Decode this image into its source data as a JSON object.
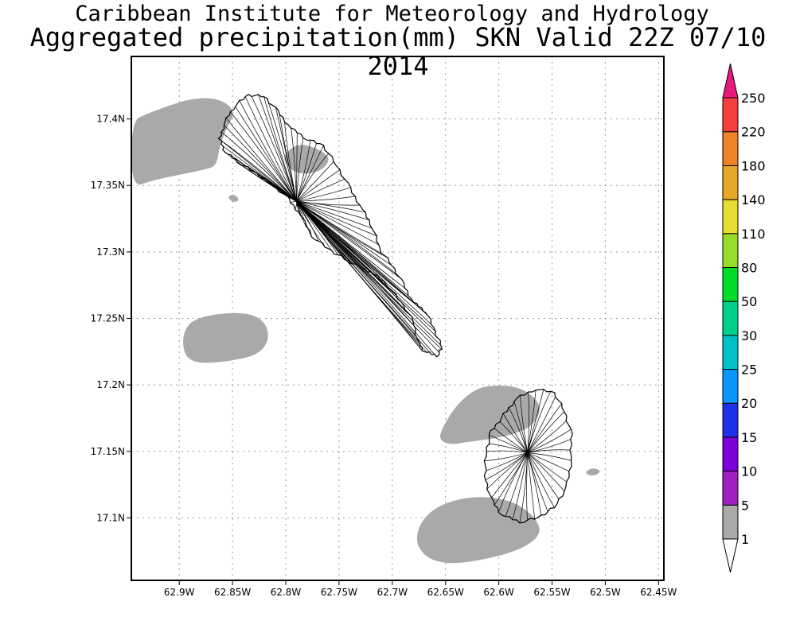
{
  "header": {
    "title": "Caribbean Institute for Meteorology and Hydrology",
    "subtitle": "Aggregated precipitation(mm) SKN Valid 22Z 07/10 2014"
  },
  "map": {
    "lon_range": [
      -62.945,
      -62.445
    ],
    "lat_range": [
      17.053,
      17.447
    ],
    "grid": true,
    "x_ticks": [
      {
        "value": -62.9,
        "label": "62.9W"
      },
      {
        "value": -62.85,
        "label": "62.85W"
      },
      {
        "value": -62.8,
        "label": "62.8W"
      },
      {
        "value": -62.75,
        "label": "62.75W"
      },
      {
        "value": -62.7,
        "label": "62.7W"
      },
      {
        "value": -62.65,
        "label": "62.65W"
      },
      {
        "value": -62.6,
        "label": "62.6W"
      },
      {
        "value": -62.55,
        "label": "62.55W"
      },
      {
        "value": -62.5,
        "label": "62.5W"
      },
      {
        "value": -62.45,
        "label": "62.45W"
      }
    ],
    "y_ticks": [
      {
        "value": 17.4,
        "label": "17.4N"
      },
      {
        "value": 17.35,
        "label": "17.35N"
      },
      {
        "value": 17.3,
        "label": "17.3N"
      },
      {
        "value": 17.25,
        "label": "17.25N"
      },
      {
        "value": 17.2,
        "label": "17.2N"
      },
      {
        "value": 17.15,
        "label": "17.15N"
      },
      {
        "value": 17.1,
        "label": "17.1N"
      }
    ],
    "precip_color": "#a9a9a9",
    "precip_areas": [
      {
        "name": "precip-area-northwest",
        "points": [
          [
            -62.945,
            17.398
          ],
          [
            -62.93,
            17.404
          ],
          [
            -62.91,
            17.41
          ],
          [
            -62.89,
            17.415
          ],
          [
            -62.87,
            17.416
          ],
          [
            -62.855,
            17.412
          ],
          [
            -62.848,
            17.404
          ],
          [
            -62.855,
            17.394
          ],
          [
            -62.862,
            17.38
          ],
          [
            -62.865,
            17.365
          ],
          [
            -62.875,
            17.362
          ],
          [
            -62.9,
            17.358
          ],
          [
            -62.925,
            17.354
          ],
          [
            -62.945,
            17.348
          ]
        ]
      },
      {
        "name": "precip-area-islet",
        "points": [
          [
            -62.855,
            17.341
          ],
          [
            -62.849,
            17.344
          ],
          [
            -62.843,
            17.339
          ],
          [
            -62.849,
            17.337
          ]
        ]
      },
      {
        "name": "precip-area-central-st-kitts",
        "points": [
          [
            -62.805,
            17.37
          ],
          [
            -62.79,
            17.382
          ],
          [
            -62.77,
            17.378
          ],
          [
            -62.757,
            17.37
          ],
          [
            -62.768,
            17.36
          ],
          [
            -62.79,
            17.358
          ]
        ]
      },
      {
        "name": "precip-area-west-offshore",
        "points": [
          [
            -62.897,
            17.23
          ],
          [
            -62.895,
            17.242
          ],
          [
            -62.885,
            17.25
          ],
          [
            -62.86,
            17.254
          ],
          [
            -62.835,
            17.254
          ],
          [
            -62.82,
            17.248
          ],
          [
            -62.815,
            17.235
          ],
          [
            -62.825,
            17.223
          ],
          [
            -62.85,
            17.218
          ],
          [
            -62.88,
            17.216
          ],
          [
            -62.893,
            17.22
          ]
        ]
      },
      {
        "name": "precip-area-nevis-north",
        "points": [
          [
            -62.655,
            17.165
          ],
          [
            -62.64,
            17.185
          ],
          [
            -62.62,
            17.198
          ],
          [
            -62.6,
            17.2
          ],
          [
            -62.58,
            17.198
          ],
          [
            -62.565,
            17.19
          ],
          [
            -62.56,
            17.18
          ],
          [
            -62.57,
            17.168
          ],
          [
            -62.59,
            17.162
          ],
          [
            -62.61,
            17.159
          ],
          [
            -62.63,
            17.157
          ],
          [
            -62.645,
            17.155
          ],
          [
            -62.655,
            17.158
          ]
        ]
      },
      {
        "name": "precip-area-nevis-south",
        "points": [
          [
            -62.678,
            17.08
          ],
          [
            -62.675,
            17.095
          ],
          [
            -62.66,
            17.108
          ],
          [
            -62.635,
            17.115
          ],
          [
            -62.61,
            17.116
          ],
          [
            -62.585,
            17.112
          ],
          [
            -62.565,
            17.1
          ],
          [
            -62.56,
            17.088
          ],
          [
            -62.575,
            17.078
          ],
          [
            -62.6,
            17.071
          ],
          [
            -62.64,
            17.065
          ],
          [
            -62.665,
            17.068
          ]
        ]
      },
      {
        "name": "precip-area-east-islet",
        "points": [
          [
            -62.52,
            17.134
          ],
          [
            -62.512,
            17.138
          ],
          [
            -62.503,
            17.135
          ],
          [
            -62.512,
            17.131
          ]
        ]
      }
    ],
    "islands": [
      {
        "name": "st-kitts-island",
        "points": [
          [
            -62.862,
            17.385
          ],
          [
            -62.857,
            17.398
          ],
          [
            -62.848,
            17.41
          ],
          [
            -62.835,
            17.418
          ],
          [
            -62.82,
            17.417
          ],
          [
            -62.808,
            17.406
          ],
          [
            -62.795,
            17.393
          ],
          [
            -62.78,
            17.385
          ],
          [
            -62.765,
            17.38
          ],
          [
            -62.752,
            17.365
          ],
          [
            -62.74,
            17.348
          ],
          [
            -62.728,
            17.332
          ],
          [
            -62.718,
            17.318
          ],
          [
            -62.712,
            17.302
          ],
          [
            -62.7,
            17.29
          ],
          [
            -62.69,
            17.276
          ],
          [
            -62.68,
            17.262
          ],
          [
            -62.668,
            17.255
          ],
          [
            -62.66,
            17.24
          ],
          [
            -62.653,
            17.228
          ],
          [
            -62.658,
            17.222
          ],
          [
            -62.67,
            17.225
          ],
          [
            -62.676,
            17.232
          ],
          [
            -62.68,
            17.248
          ],
          [
            -62.692,
            17.262
          ],
          [
            -62.705,
            17.276
          ],
          [
            -62.72,
            17.285
          ],
          [
            -62.735,
            17.29
          ],
          [
            -62.745,
            17.295
          ],
          [
            -62.76,
            17.302
          ],
          [
            -62.775,
            17.312
          ],
          [
            -62.788,
            17.33
          ],
          [
            -62.8,
            17.342
          ],
          [
            -62.815,
            17.352
          ],
          [
            -62.83,
            17.36
          ],
          [
            -62.845,
            17.368
          ],
          [
            -62.857,
            17.375
          ]
        ]
      },
      {
        "name": "nevis-island",
        "points": [
          [
            -62.595,
            17.178
          ],
          [
            -62.583,
            17.19
          ],
          [
            -62.565,
            17.197
          ],
          [
            -62.548,
            17.194
          ],
          [
            -62.538,
            17.18
          ],
          [
            -62.532,
            17.163
          ],
          [
            -62.532,
            17.143
          ],
          [
            -62.536,
            17.123
          ],
          [
            -62.548,
            17.108
          ],
          [
            -62.563,
            17.1
          ],
          [
            -62.58,
            17.097
          ],
          [
            -62.597,
            17.102
          ],
          [
            -62.608,
            17.115
          ],
          [
            -62.613,
            17.132
          ],
          [
            -62.612,
            17.15
          ],
          [
            -62.607,
            17.165
          ]
        ]
      }
    ],
    "st_kitts_center": [
      -62.79,
      17.338
    ],
    "nevis_center": [
      -62.573,
      17.149
    ]
  },
  "colorbar": {
    "levels": [
      "1",
      "5",
      "10",
      "15",
      "20",
      "25",
      "30",
      "50",
      "80",
      "110",
      "140",
      "180",
      "220",
      "250"
    ],
    "colors": [
      "#a9a9a9",
      "#a020c0",
      "#7b00dc",
      "#2030e8",
      "#0a96ff",
      "#00c0c8",
      "#00d08c",
      "#00dc28",
      "#96dc28",
      "#e6dc32",
      "#e6a828",
      "#f08228",
      "#f54040",
      "#e6197d"
    ]
  }
}
